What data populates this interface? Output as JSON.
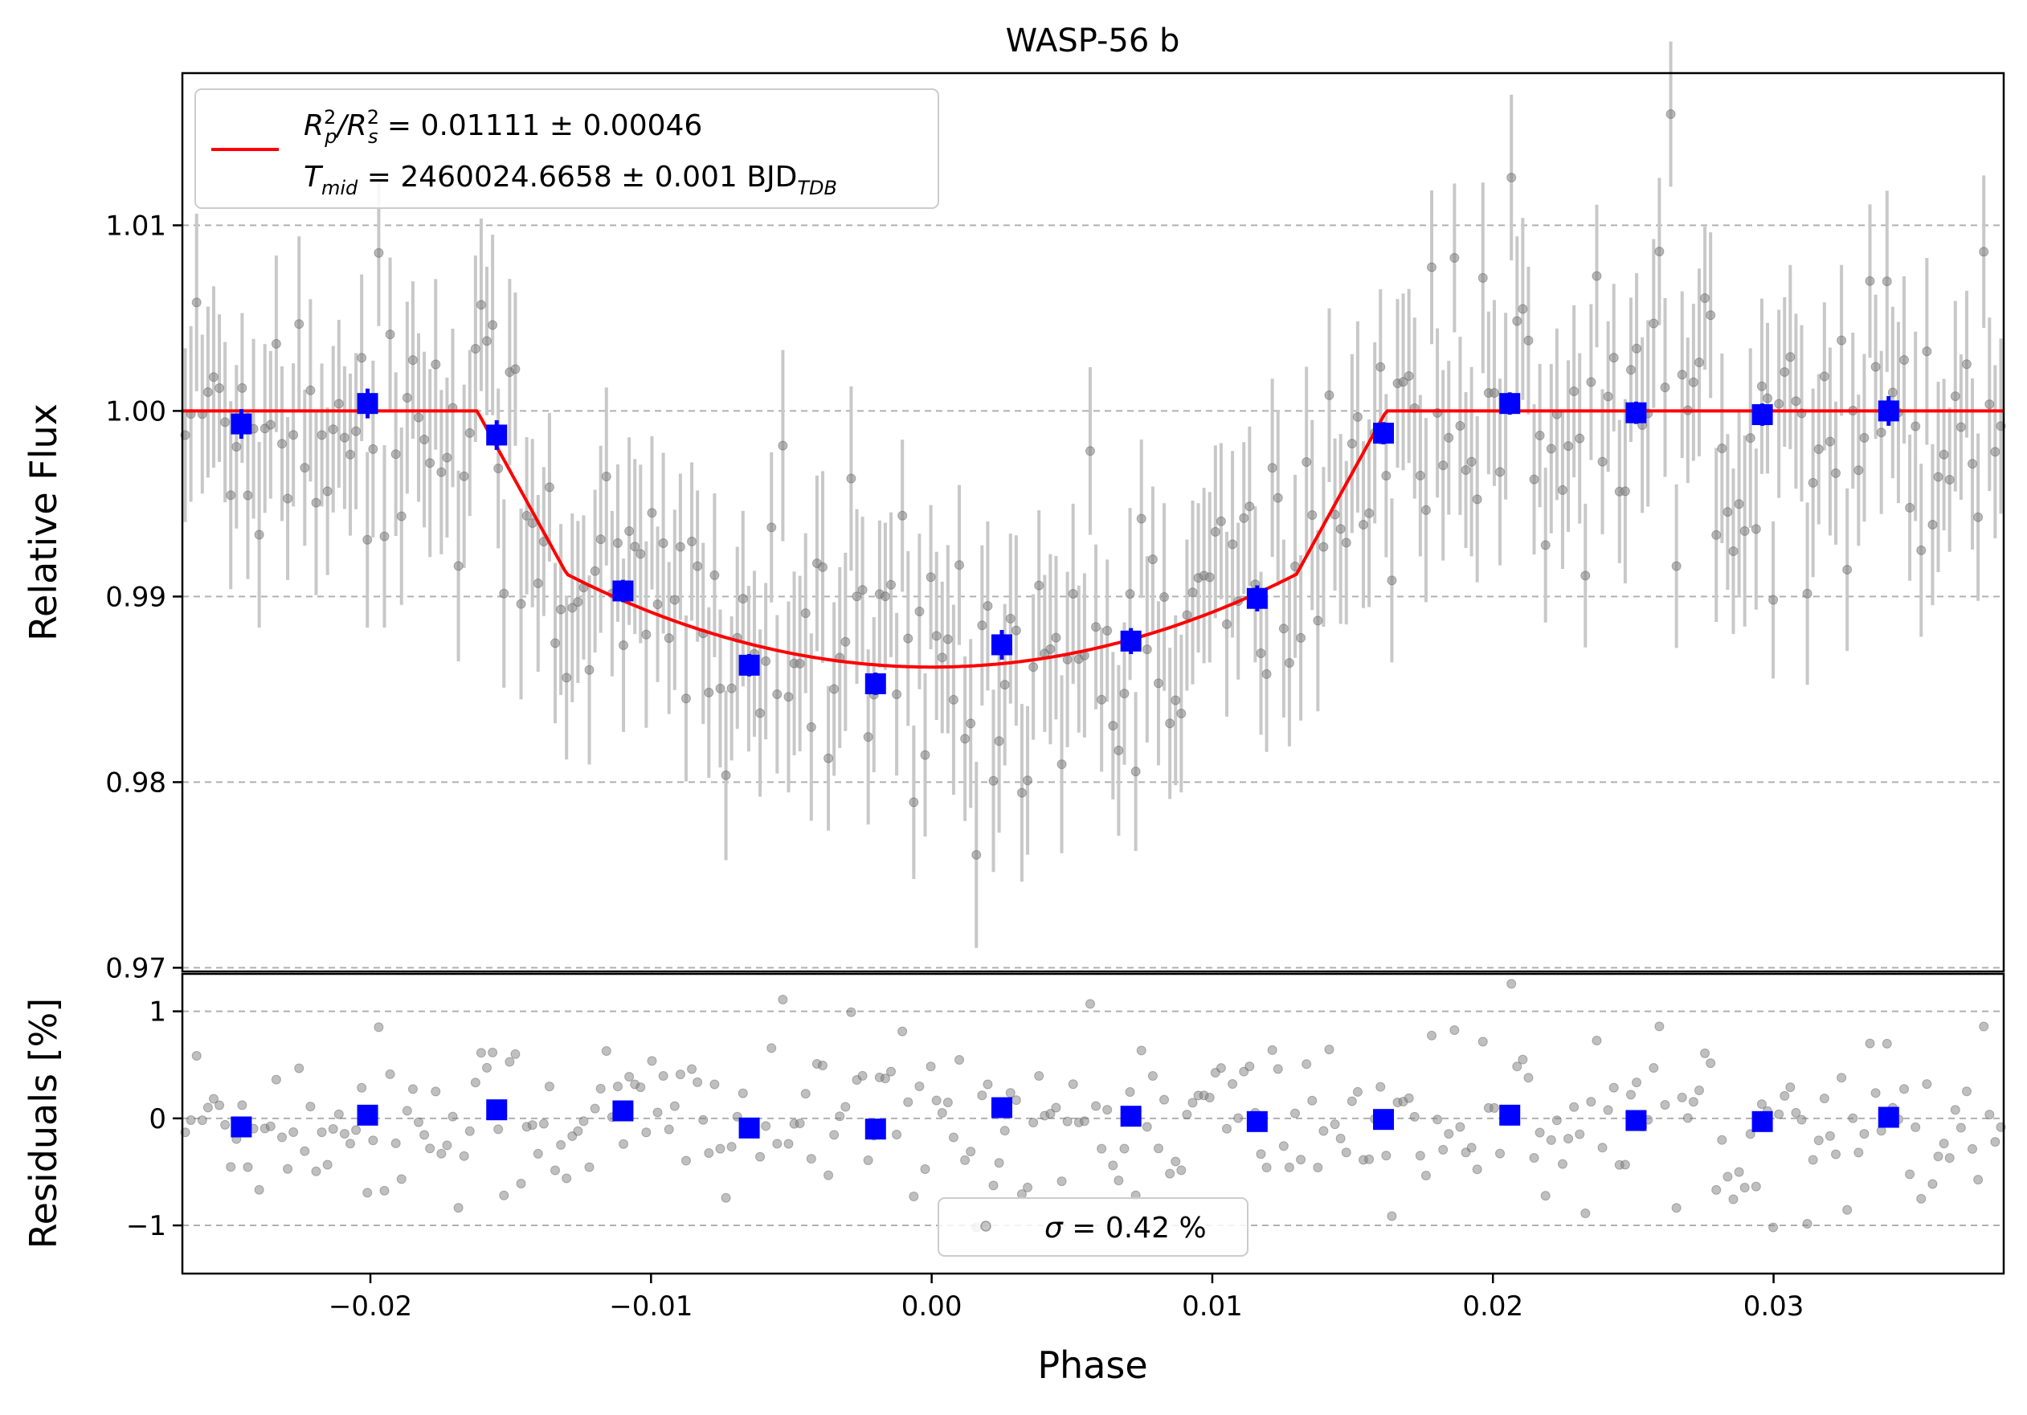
{
  "chart_data": [
    {
      "type": "scatter",
      "panel": "top",
      "title": "WASP-56 b",
      "xlabel": "",
      "ylabel": "Relative Flux",
      "xlim": [
        -0.0267,
        0.0382
      ],
      "ylim": [
        0.9698,
        1.0182
      ],
      "yticks": [
        0.97,
        0.98,
        0.99,
        1.0,
        1.01
      ],
      "ytick_labels": [
        "0.97",
        "0.98",
        "0.99",
        "1.00",
        "1.01"
      ],
      "grid": "horizontal dashed",
      "legend": {
        "placement": "top-left",
        "entries": [
          {
            "line1_label": "Rp²/Rs² = 0.01111 ± 0.00046",
            "line1_parts": {
              "a": "R",
              "a_sup": "2",
              "a_sub": "p",
              "b": "/R",
              "b_sup": "2",
              "b_sub": "s",
              "value": " = 0.01111 ± 0.00046"
            },
            "line2_label": "Tmid = 2460024.6658 ± 0.001 BJDTDB",
            "line2_parts": {
              "t": "T",
              "t_sub": "mid",
              "value": " = 2460024.6658 ± 0.001 BJD",
              "unit_sub": "TDB"
            },
            "color": "#ff0000"
          }
        ]
      },
      "model": {
        "name": "transit model",
        "baseline": 1.0,
        "depth": 0.0138,
        "t1": -0.0162,
        "t2": -0.013,
        "t3": 0.013,
        "t4": 0.0162,
        "ingress_flux": 0.9912,
        "color": "#ff0000"
      },
      "binned": {
        "color": "#0000ff",
        "x": [
          -0.0246,
          -0.0201,
          -0.0155,
          -0.011,
          -0.0065,
          -0.002,
          0.0025,
          0.0071,
          0.0116,
          0.0161,
          0.0206,
          0.0251,
          0.0296,
          0.0341
        ],
        "y": [
          0.9993,
          1.0004,
          0.9987,
          0.9903,
          0.9863,
          0.9853,
          0.9874,
          0.9876,
          0.9899,
          0.9988,
          1.0004,
          0.9999,
          0.9998,
          1.0
        ],
        "yerr": [
          0.0008,
          0.0008,
          0.0008,
          0.0006,
          0.0006,
          0.0006,
          0.0008,
          0.0007,
          0.0007,
          0.0006,
          0.0006,
          0.0006,
          0.0006,
          0.0008
        ]
      },
      "raw": {
        "color": "#808080",
        "errorbar_color": "#c8c8c8",
        "n_points": 320,
        "typical_error": 0.0045,
        "x_start": -0.0267,
        "x_end": 0.0382
      }
    },
    {
      "type": "scatter",
      "panel": "bottom",
      "xlabel": "Phase",
      "ylabel": "Residuals [%]",
      "xlim": [
        -0.0267,
        0.0382
      ],
      "ylim": [
        -1.45,
        1.35
      ],
      "xticks": [
        -0.02,
        -0.01,
        0.0,
        0.01,
        0.02,
        0.03
      ],
      "xtick_labels": [
        "−0.02",
        "−0.01",
        "0.00",
        "0.01",
        "0.02",
        "0.03"
      ],
      "yticks": [
        -1,
        0,
        1
      ],
      "ytick_labels": [
        "−1",
        "0",
        "1"
      ],
      "grid": "horizontal dashed",
      "legend": {
        "placement": "bottom-center",
        "label": "σ = 0.42 %",
        "symbol": "σ",
        "value": " = 0.42 %"
      },
      "binned": {
        "color": "#0000ff",
        "x": [
          -0.0246,
          -0.0201,
          -0.0155,
          -0.011,
          -0.0065,
          -0.002,
          0.0025,
          0.0071,
          0.0116,
          0.0161,
          0.0206,
          0.0251,
          0.0296,
          0.0341
        ],
        "y": [
          -0.08,
          0.03,
          0.08,
          0.07,
          -0.09,
          -0.1,
          0.1,
          0.02,
          -0.03,
          -0.01,
          0.03,
          -0.02,
          -0.03,
          0.01
        ]
      },
      "raw": {
        "color": "#808080",
        "sigma_percent": 0.42,
        "n_points": 320
      }
    }
  ]
}
